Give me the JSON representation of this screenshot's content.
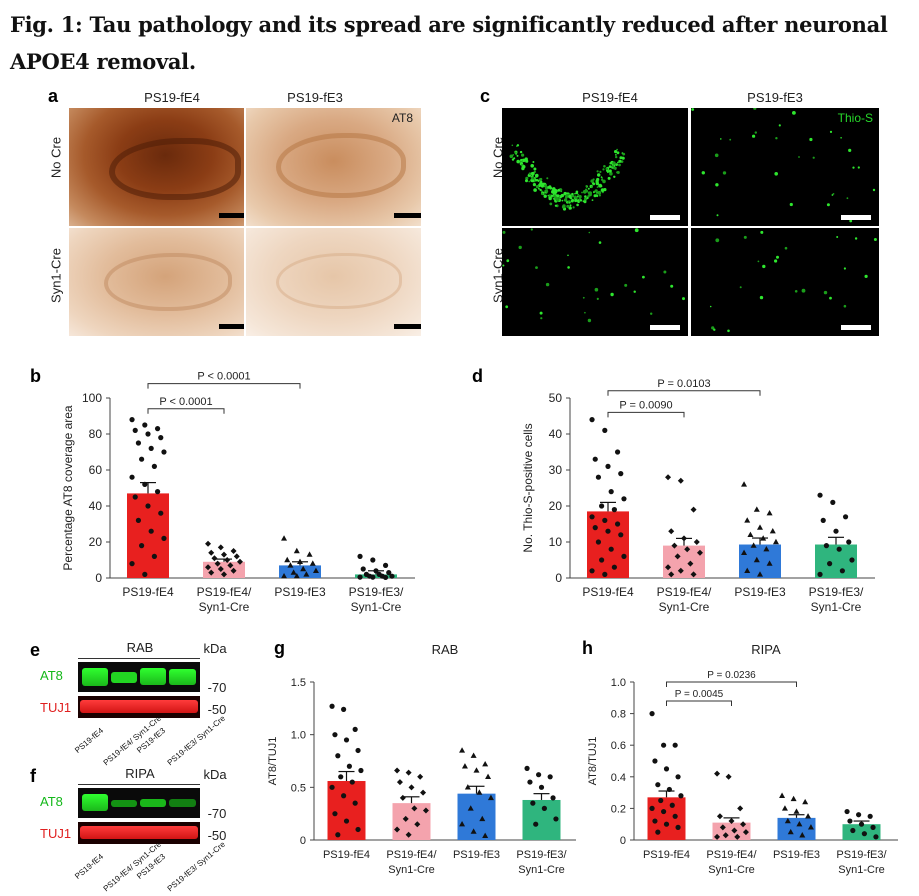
{
  "figure": {
    "title": "Fig. 1: Tau pathology and its spread are significantly reduced after neuronal APOE4 removal."
  },
  "panel_letters": {
    "a": "a",
    "b": "b",
    "c": "c",
    "d": "d",
    "e": "e",
    "f": "f",
    "g": "g",
    "h": "h"
  },
  "panel_a": {
    "cols": [
      "PS19-fE4",
      "PS19-fE3"
    ],
    "rows": [
      "No Cre",
      "Syn1-Cre"
    ],
    "stain": "AT8"
  },
  "panel_c": {
    "cols": [
      "PS19-fE4",
      "PS19-fE3"
    ],
    "rows": [
      "No Cre",
      "Syn1-Cre"
    ],
    "stain": "Thio-S"
  },
  "blots": {
    "kda": "kDa",
    "e_title": "RAB",
    "f_title": "RIPA",
    "at8": "AT8",
    "tuj1": "TUJ1",
    "mw70": "-70",
    "mw50": "-50",
    "lanes": [
      "PS19-fE4",
      "PS19-fE4/ Syn1-Cre",
      "PS19-fE3",
      "PS19-fE3/ Syn1-Cre"
    ]
  },
  "colors": {
    "fE4": "#e8201f",
    "fE4cre": "#f4a3ad",
    "fE3": "#2f79d8",
    "fE3cre": "#2fb57e"
  },
  "chart_data": [
    {
      "panel": "b",
      "type": "bar",
      "categories": [
        "PS19-fE4",
        "PS19-fE4/\nSyn1-Cre",
        "PS19-fE3",
        "PS19-fE3/\nSyn1-Cre"
      ],
      "values": [
        47,
        9,
        7,
        2
      ],
      "sem": [
        6,
        1.5,
        2,
        2
      ],
      "ylabel": "Percentage AT8 coverage area",
      "ylim": [
        0,
        100
      ],
      "yticks": [
        0,
        20,
        40,
        60,
        80,
        100
      ],
      "points": [
        [
          88,
          85,
          83,
          82,
          80,
          78,
          75,
          72,
          70,
          66,
          62,
          56,
          52,
          48,
          45,
          40,
          36,
          32,
          26,
          22,
          18,
          12,
          8,
          2
        ],
        [
          19,
          17,
          15,
          14,
          13,
          12,
          11,
          10,
          9,
          8,
          7,
          6,
          5,
          4,
          3,
          2
        ],
        [
          22,
          15,
          13,
          10,
          9,
          8,
          7,
          5,
          4,
          3,
          2,
          1,
          1
        ],
        [
          12,
          10,
          7,
          5,
          4,
          3,
          2,
          2,
          1,
          1,
          1,
          0.5,
          0.5,
          0.3
        ]
      ],
      "markers": [
        "circle",
        "diamond",
        "triangle",
        "circle"
      ],
      "comparisons": [
        {
          "from": 0,
          "to": 1,
          "label": "P < 0.0001",
          "y": 94
        },
        {
          "from": 0,
          "to": 2,
          "label": "P < 0.0001",
          "y": 108
        }
      ]
    },
    {
      "panel": "d",
      "type": "bar",
      "categories": [
        "PS19-fE4",
        "PS19-fE4/\nSyn1-Cre",
        "PS19-fE3",
        "PS19-fE3/\nSyn1-Cre"
      ],
      "values": [
        18.5,
        9,
        9.3,
        9.3
      ],
      "sem": [
        2.5,
        2,
        1.8,
        2
      ],
      "ylabel": "No. Thio-S-positive cells",
      "ylim": [
        0,
        50
      ],
      "yticks": [
        0,
        10,
        20,
        30,
        40,
        50
      ],
      "points": [
        [
          44,
          41,
          35,
          33,
          31,
          29,
          28,
          24,
          22,
          20,
          19,
          17,
          16,
          15,
          14,
          13,
          12,
          10,
          8,
          6,
          5,
          3,
          2,
          1
        ],
        [
          28,
          27,
          19,
          13,
          11,
          10,
          9,
          8,
          7,
          6,
          4,
          3,
          2,
          1,
          1
        ],
        [
          26,
          19,
          18,
          16,
          14,
          13,
          12,
          11,
          10,
          9,
          8,
          7,
          5,
          4,
          2,
          1
        ],
        [
          23,
          21,
          17,
          16,
          13,
          10,
          9,
          8,
          5,
          4,
          2,
          1
        ]
      ],
      "markers": [
        "circle",
        "diamond",
        "triangle",
        "circle"
      ],
      "comparisons": [
        {
          "from": 0,
          "to": 1,
          "label": "P = 0.0090",
          "y": 46
        },
        {
          "from": 0,
          "to": 2,
          "label": "P = 0.0103",
          "y": 52
        }
      ]
    },
    {
      "panel": "g",
      "type": "bar",
      "title": "RAB",
      "categories": [
        "PS19-fE4",
        "PS19-fE4/\nSyn1-Cre",
        "PS19-fE3",
        "PS19-fE3/\nSyn1-Cre"
      ],
      "values": [
        0.56,
        0.35,
        0.44,
        0.38
      ],
      "sem": [
        0.09,
        0.06,
        0.07,
        0.06
      ],
      "ylabel": "AT8/TUJ1",
      "ylim": [
        0,
        1.5
      ],
      "yticks": [
        0,
        0.5,
        1.0,
        1.5
      ],
      "ytick_labels": [
        "0",
        "0.5",
        "1.0",
        "1.5"
      ],
      "points": [
        [
          1.27,
          1.24,
          1.05,
          1.0,
          0.95,
          0.85,
          0.8,
          0.7,
          0.66,
          0.6,
          0.55,
          0.5,
          0.42,
          0.35,
          0.25,
          0.18,
          0.1,
          0.05
        ],
        [
          0.66,
          0.64,
          0.6,
          0.55,
          0.5,
          0.45,
          0.4,
          0.3,
          0.28,
          0.2,
          0.15,
          0.1,
          0.05
        ],
        [
          0.85,
          0.8,
          0.72,
          0.7,
          0.66,
          0.6,
          0.5,
          0.45,
          0.4,
          0.3,
          0.2,
          0.15,
          0.08,
          0.04
        ],
        [
          0.68,
          0.62,
          0.6,
          0.55,
          0.5,
          0.4,
          0.35,
          0.3,
          0.2,
          0.15
        ]
      ],
      "markers": [
        "circle",
        "diamond",
        "triangle",
        "circle"
      ],
      "comparisons": []
    },
    {
      "panel": "h",
      "type": "bar",
      "title": "RIPA",
      "categories": [
        "PS19-fE4",
        "PS19-fE4/\nSyn1-Cre",
        "PS19-fE3",
        "PS19-fE3/\nSyn1-Cre"
      ],
      "values": [
        0.27,
        0.11,
        0.14,
        0.1
      ],
      "sem": [
        0.04,
        0.03,
        0.02,
        0.02
      ],
      "ylabel": "AT8/TUJ1",
      "ylim": [
        0,
        1.0
      ],
      "yticks": [
        0,
        0.2,
        0.4,
        0.6,
        0.8,
        1.0
      ],
      "ytick_labels": [
        "0",
        "0.2",
        "0.4",
        "0.6",
        "0.8",
        "1.0"
      ],
      "points": [
        [
          0.8,
          0.6,
          0.6,
          0.5,
          0.45,
          0.4,
          0.35,
          0.32,
          0.28,
          0.25,
          0.22,
          0.2,
          0.18,
          0.15,
          0.12,
          0.1,
          0.08,
          0.05
        ],
        [
          0.42,
          0.4,
          0.2,
          0.15,
          0.12,
          0.1,
          0.08,
          0.06,
          0.05,
          0.03,
          0.02,
          0.02
        ],
        [
          0.28,
          0.26,
          0.24,
          0.2,
          0.18,
          0.15,
          0.12,
          0.1,
          0.08,
          0.05,
          0.03
        ],
        [
          0.18,
          0.16,
          0.15,
          0.12,
          0.1,
          0.08,
          0.06,
          0.04,
          0.02
        ]
      ],
      "markers": [
        "circle",
        "diamond",
        "triangle",
        "circle"
      ],
      "comparisons": [
        {
          "from": 0,
          "to": 1,
          "label": "P = 0.0045",
          "y": 0.88
        },
        {
          "from": 0,
          "to": 2,
          "label": "P = 0.0236",
          "y": 1.0
        }
      ]
    }
  ]
}
